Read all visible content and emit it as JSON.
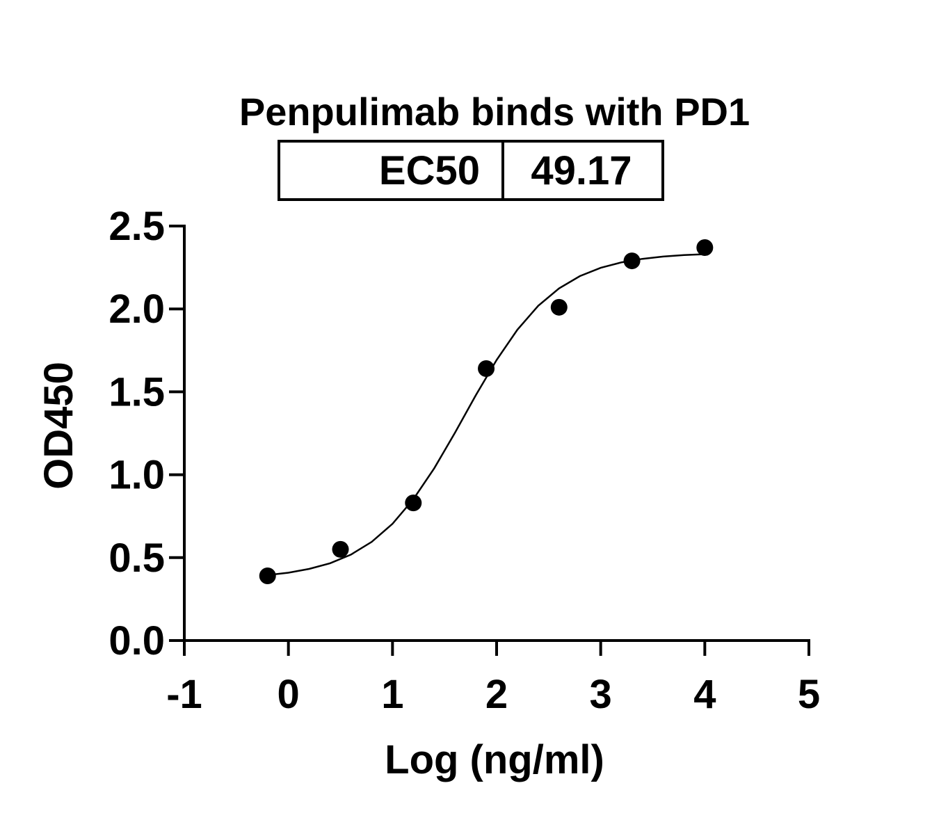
{
  "chart_data": {
    "type": "scatter",
    "title": "Penpulimab binds with PD1",
    "ec50_table": {
      "label": "EC50",
      "value": "49.17"
    },
    "x_label": "Log (ng/ml)",
    "y_label": "OD450",
    "xlim": [
      -1,
      5
    ],
    "xticks": [
      -1,
      0,
      1,
      2,
      3,
      4,
      5
    ],
    "ylim": [
      0,
      2.5
    ],
    "yticks": [
      {
        "value": 0,
        "label": "0.0"
      },
      {
        "value": 0.5,
        "label": "0.5"
      },
      {
        "value": 1,
        "label": "1.0"
      },
      {
        "value": 1.5,
        "label": "1.5"
      },
      {
        "value": 2,
        "label": "2.0"
      },
      {
        "value": 2.5,
        "label": "2.5"
      }
    ],
    "series": [
      {
        "type": "scatter",
        "color": "#000000",
        "x": [
          -0.2,
          0.5,
          1.2,
          1.9,
          2.6,
          3.3,
          4.0
        ],
        "values": [
          0.39,
          0.55,
          0.83,
          1.64,
          2.01,
          2.29,
          2.37
        ]
      },
      {
        "type": "line",
        "color": "#000000",
        "x": [
          -0.2,
          0,
          0.2,
          0.4,
          0.6,
          0.8,
          1.0,
          1.2,
          1.4,
          1.6,
          1.8,
          2.0,
          2.2,
          2.4,
          2.6,
          2.8,
          3.0,
          3.2,
          3.4,
          3.6,
          3.8,
          4.0
        ],
        "values": [
          0.395,
          0.409,
          0.432,
          0.466,
          0.518,
          0.595,
          0.704,
          0.852,
          1.038,
          1.253,
          1.479,
          1.692,
          1.875,
          2.019,
          2.124,
          2.198,
          2.248,
          2.281,
          2.302,
          2.316,
          2.325,
          2.33
        ]
      }
    ]
  }
}
